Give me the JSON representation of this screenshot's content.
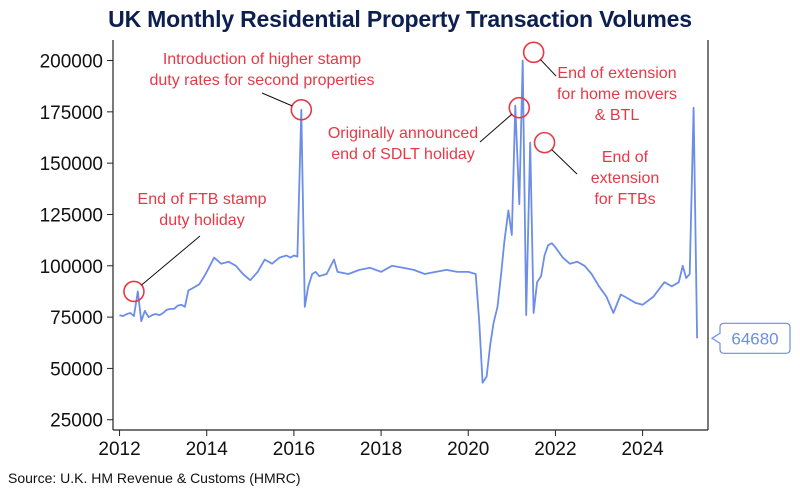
{
  "title": "UK Monthly Residential Property Transaction Volumes",
  "source": "Source: U.K. HM Revenue & Customs (HMRC)",
  "chart_data": {
    "type": "line",
    "title": "UK Monthly Residential Property Transaction Volumes",
    "xlabel": "",
    "ylabel": "",
    "ylim": [
      20000,
      210000
    ],
    "xlim": [
      2011.85,
      2025.5
    ],
    "y_ticks": [
      25000,
      50000,
      75000,
      100000,
      125000,
      150000,
      175000,
      200000
    ],
    "x_ticks": [
      2012,
      2014,
      2016,
      2018,
      2020,
      2022,
      2024
    ],
    "grid": false,
    "legend": "none",
    "colors": {
      "line": "#6c8ee8",
      "annotation": "#e63946",
      "title": "#0c1f4f"
    },
    "series": [
      {
        "x": [
          2012.0,
          2012.08,
          2012.17,
          2012.25,
          2012.33,
          2012.42,
          2012.5,
          2012.58,
          2012.67,
          2012.75,
          2012.83,
          2012.92,
          2013.0,
          2013.08,
          2013.17,
          2013.25,
          2013.33,
          2013.42,
          2013.5,
          2013.58,
          2013.67,
          2013.75,
          2013.83,
          2013.92,
          2014.0,
          2014.17,
          2014.33,
          2014.5,
          2014.67,
          2014.83,
          2015.0,
          2015.17,
          2015.33,
          2015.5,
          2015.67,
          2015.83,
          2015.92,
          2016.0,
          2016.08,
          2016.17,
          2016.25,
          2016.33,
          2016.42,
          2016.5,
          2016.58,
          2016.75,
          2016.92,
          2017.0,
          2017.25,
          2017.5,
          2017.75,
          2018.0,
          2018.25,
          2018.5,
          2018.75,
          2019.0,
          2019.25,
          2019.5,
          2019.75,
          2020.0,
          2020.17,
          2020.25,
          2020.33,
          2020.42,
          2020.5,
          2020.58,
          2020.67,
          2020.75,
          2020.83,
          2020.92,
          2021.0,
          2021.08,
          2021.17,
          2021.25,
          2021.33,
          2021.42,
          2021.5,
          2021.58,
          2021.67,
          2021.75,
          2021.83,
          2021.92,
          2022.0,
          2022.17,
          2022.33,
          2022.5,
          2022.67,
          2022.83,
          2023.0,
          2023.17,
          2023.33,
          2023.5,
          2023.67,
          2023.83,
          2024.0,
          2024.25,
          2024.5,
          2024.67,
          2024.83,
          2024.92,
          2025.0,
          2025.08,
          2025.17,
          2025.25
        ],
        "y": [
          76000,
          75500,
          76500,
          77000,
          75500,
          87500,
          73000,
          78000,
          75000,
          76000,
          76500,
          76000,
          77000,
          78500,
          79000,
          79000,
          80500,
          81000,
          80000,
          88000,
          89000,
          90000,
          91000,
          94000,
          97000,
          104000,
          101000,
          102000,
          100000,
          96000,
          93000,
          97000,
          103000,
          101000,
          104000,
          105000,
          104000,
          105000,
          104500,
          176000,
          80000,
          90000,
          96000,
          97000,
          95000,
          96000,
          103000,
          97000,
          96000,
          98000,
          99000,
          97000,
          100000,
          99000,
          98000,
          96000,
          97000,
          98000,
          97000,
          97000,
          96000,
          73000,
          43000,
          46000,
          61000,
          72000,
          80000,
          95000,
          112000,
          127000,
          115000,
          178000,
          130000,
          200000,
          76000,
          160000,
          77000,
          92000,
          95000,
          105000,
          110000,
          111000,
          109000,
          104000,
          101000,
          102000,
          100000,
          96000,
          90000,
          85000,
          77000,
          86000,
          84000,
          82000,
          81000,
          85000,
          92000,
          90000,
          92000,
          100000,
          94000,
          96000,
          177000,
          64680
        ]
      }
    ],
    "last_value_label": "64680",
    "annotations": [
      {
        "text": [
          "End of FTB stamp",
          "duty holiday"
        ],
        "at": [
          2012.33,
          87500
        ]
      },
      {
        "text": [
          "Introduction of higher stamp",
          "duty rates for second properties"
        ],
        "at": [
          2016.17,
          176000
        ]
      },
      {
        "text": [
          "Originally announced",
          "end of SDLT holiday"
        ],
        "at": [
          2021.17,
          177000
        ]
      },
      {
        "text": [
          "End of extension",
          "for home movers",
          "& BTL"
        ],
        "at": [
          2021.5,
          204000
        ]
      },
      {
        "text": [
          "End of",
          "extension",
          "for FTBs"
        ],
        "at": [
          2021.75,
          160000
        ]
      }
    ]
  }
}
